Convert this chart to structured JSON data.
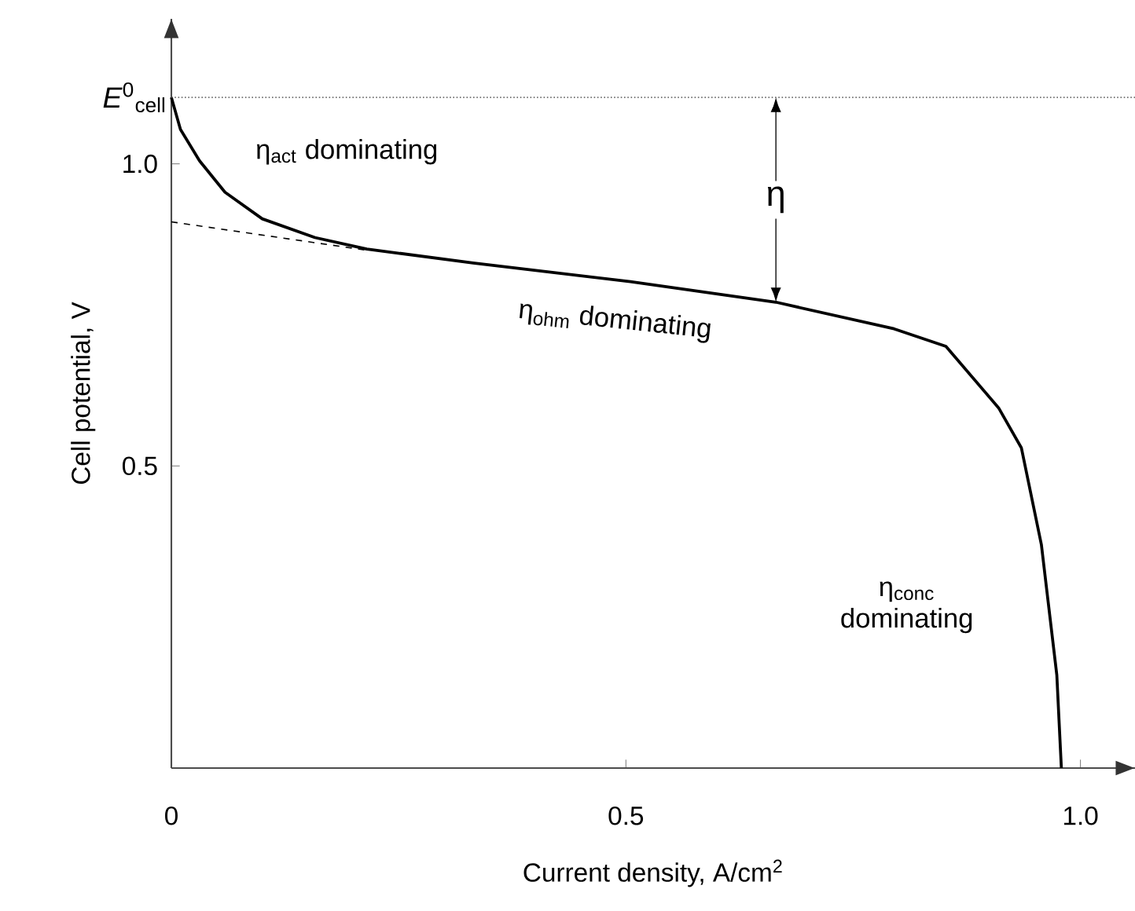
{
  "chart_data": {
    "type": "line",
    "xlabel": "Current density, A/cm$^{2}$",
    "ylabel": "Cell potential, V",
    "xlim": [
      0,
      1.06
    ],
    "ylim": [
      0,
      1.24
    ],
    "xticks": [
      {
        "value": 0,
        "label": "0"
      },
      {
        "value": 0.5,
        "label": "0.5"
      },
      {
        "value": 1,
        "label": "1.0"
      }
    ],
    "yticks": [
      {
        "value": 0.5,
        "label": "0.5"
      },
      {
        "value": 1,
        "label": "1.0"
      }
    ],
    "series": [
      {
        "color": "#000000",
        "line_style": "solid",
        "x": [
          0,
          0.01,
          0.031,
          0.059,
          0.1,
          0.158,
          0.215,
          0.332,
          0.505,
          0.665,
          0.795,
          0.852,
          0.91,
          0.935,
          0.957,
          0.974,
          0.979
        ],
        "values": [
          1.11,
          1.057,
          1.005,
          0.953,
          0.909,
          0.878,
          0.859,
          0.836,
          0.805,
          0.771,
          0.727,
          0.698,
          0.596,
          0.53,
          0.37,
          0.154,
          0
        ]
      },
      {
        "color": "#000000",
        "line_style": "dashed",
        "x": [
          0,
          0.215
        ],
        "values": [
          0.904,
          0.857
        ]
      }
    ],
    "ref_lines": [
      {
        "axis": "y",
        "value": 1.11,
        "label": "*E*$^{0}$$_{cell}$",
        "line_style": "dotted",
        "color": "#555555"
      }
    ],
    "annotations": [
      {
        "text": "η",
        "x": 0.665,
        "y": 0.771
      },
      "η$_{act}$ dominating",
      "η$_{ohm}$ dominating",
      "η$_{conc}$ dominating"
    ]
  }
}
